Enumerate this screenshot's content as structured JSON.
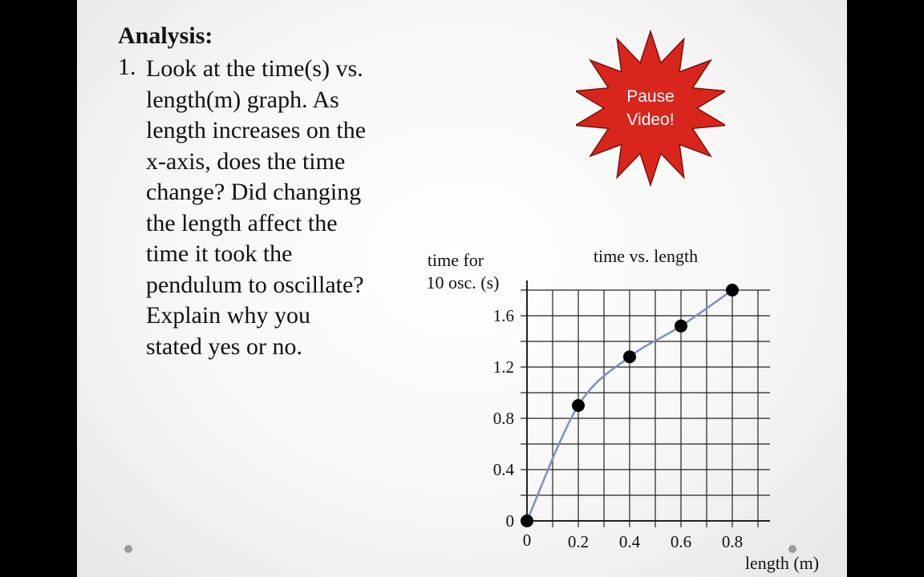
{
  "slide": {
    "heading": "Analysis:",
    "question_number": "1.",
    "question_lines": [
      "Look at the time(s) vs.",
      "length(m) graph. As",
      "length increases on the",
      "x-axis, does the time",
      "change? Did changing",
      "the length affect the",
      "time it took the",
      "pendulum to oscillate?",
      "Explain why you",
      "stated yes or no."
    ]
  },
  "pause_badge": {
    "line1": "Pause",
    "line2": "Video!",
    "fill": "#d9261c",
    "text_color": "#ffffff"
  },
  "colors": {
    "line": "#7f8fc4",
    "marker": "#000000",
    "grid": "#222222"
  },
  "chart_data": {
    "type": "scatter",
    "title": "time vs. length",
    "ylabel": [
      "time for",
      "10 osc. (s)"
    ],
    "xlabel": "length (m)",
    "xlim": [
      0,
      0.9
    ],
    "ylim": [
      0,
      1.8
    ],
    "xticks": [
      0,
      0.2,
      0.4,
      0.6,
      0.8
    ],
    "xtick_labels": [
      "0",
      "0.2",
      "0.4",
      "0.6",
      "0.8"
    ],
    "yticks": [
      0,
      0.4,
      0.8,
      1.2,
      1.6
    ],
    "ytick_labels": [
      "0",
      "0.4",
      "0.8",
      "1.2",
      "1.6"
    ],
    "grid": true,
    "series": [
      {
        "x": [
          0,
          0.2,
          0.4,
          0.6,
          0.8
        ],
        "y": [
          0,
          0.9,
          1.28,
          1.52,
          1.8
        ],
        "connected": "smooth-curve"
      }
    ]
  }
}
